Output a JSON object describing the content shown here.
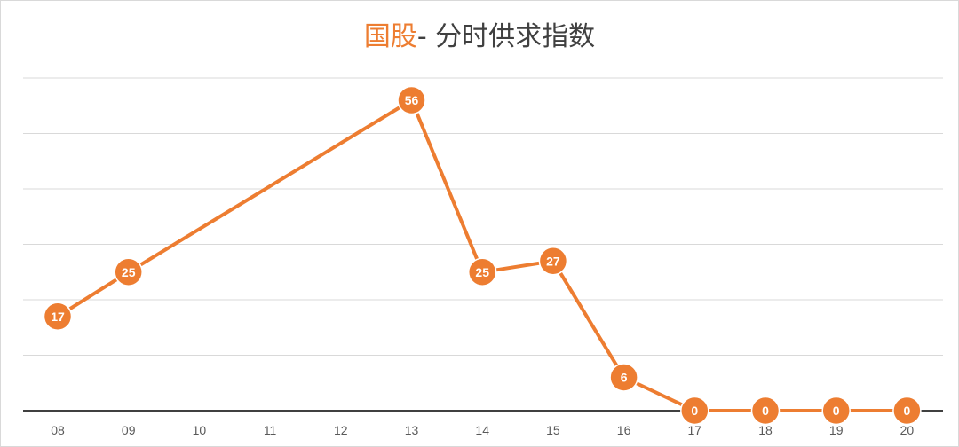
{
  "chart_data": {
    "type": "line",
    "title_highlight": "国股",
    "title_rest": "- 分时供求指数",
    "categories": [
      "08",
      "09",
      "10",
      "11",
      "12",
      "13",
      "14",
      "15",
      "16",
      "17",
      "18",
      "19",
      "20"
    ],
    "series": [
      {
        "values": [
          17,
          25,
          null,
          null,
          null,
          56,
          25,
          27,
          6,
          0,
          0,
          0,
          0
        ]
      }
    ],
    "ylim": [
      0,
      60
    ],
    "gridlines": true,
    "color": "#ED7D31"
  }
}
